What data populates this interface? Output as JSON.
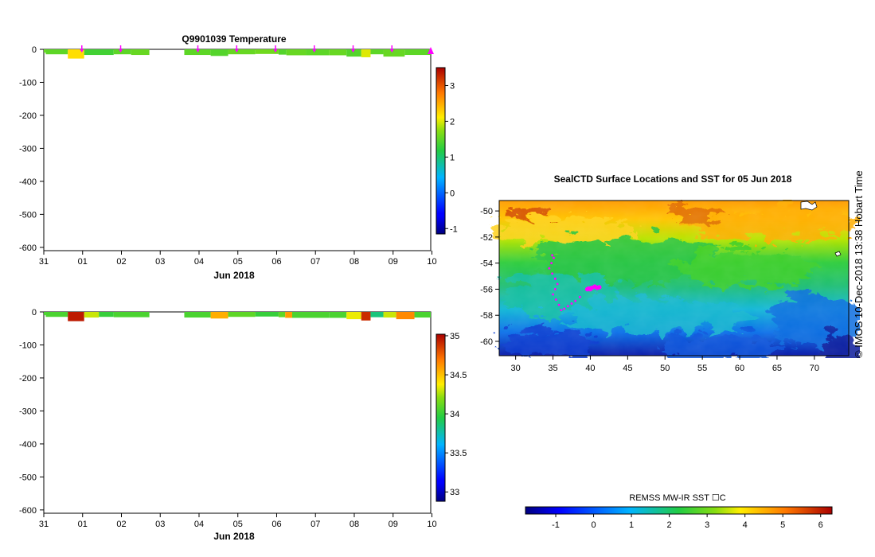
{
  "colors": {
    "marker": "#ff00ff",
    "land_mask": "#ffffff"
  },
  "chart_data": [
    {
      "id": "temperature_section",
      "type": "heatmap",
      "title": "Q9901039  Temperature",
      "xlabel": "Jun 2018",
      "ylabel": "",
      "x_tick_labels": [
        "31",
        "01",
        "02",
        "03",
        "04",
        "05",
        "06",
        "07",
        "08",
        "09",
        "10"
      ],
      "y_ticks": [
        0,
        -100,
        -200,
        -300,
        -400,
        -500,
        -600
      ],
      "xlim": [
        0,
        9.97
      ],
      "ylim": [
        -610,
        0
      ],
      "colorbar": {
        "ticks": [
          -1,
          0,
          1,
          2,
          3
        ],
        "range": [
          -1.15,
          3.5
        ],
        "colormap": "jet"
      },
      "profile_markers_x": [
        0.98,
        1.98,
        3.97,
        4.97,
        5.97,
        6.97,
        7.97,
        8.97,
        9.97
      ],
      "bars": [
        {
          "x0": 0.0,
          "x1": 0.05,
          "depth": -10,
          "value": 1.55
        },
        {
          "x0": 0.05,
          "x1": 0.62,
          "depth": -15,
          "value": 1.5
        },
        {
          "x0": 0.62,
          "x1": 1.04,
          "depth": -28,
          "value": 2.2
        },
        {
          "x0": 1.04,
          "x1": 1.8,
          "depth": -17,
          "value": 1.35
        },
        {
          "x0": 1.8,
          "x1": 2.25,
          "depth": -15,
          "value": 1.5
        },
        {
          "x0": 2.25,
          "x1": 2.72,
          "depth": -17,
          "value": 1.55
        },
        {
          "x0": 3.62,
          "x1": 4.3,
          "depth": -17,
          "value": 1.5
        },
        {
          "x0": 4.3,
          "x1": 4.75,
          "depth": -20,
          "value": 1.45
        },
        {
          "x0": 4.75,
          "x1": 5.45,
          "depth": -15,
          "value": 1.55
        },
        {
          "x0": 5.45,
          "x1": 6.05,
          "depth": -14,
          "value": 1.6
        },
        {
          "x0": 6.05,
          "x1": 6.25,
          "depth": -16,
          "value": 1.45
        },
        {
          "x0": 6.25,
          "x1": 6.75,
          "depth": -18,
          "value": 1.55
        },
        {
          "x0": 6.75,
          "x1": 7.35,
          "depth": -18,
          "value": 1.5
        },
        {
          "x0": 7.35,
          "x1": 7.8,
          "depth": -18,
          "value": 1.55
        },
        {
          "x0": 7.8,
          "x1": 8.18,
          "depth": -22,
          "value": 1.45
        },
        {
          "x0": 8.18,
          "x1": 8.42,
          "depth": -24,
          "value": 2.0
        },
        {
          "x0": 8.42,
          "x1": 8.75,
          "depth": -15,
          "value": 1.5
        },
        {
          "x0": 8.75,
          "x1": 9.3,
          "depth": -22,
          "value": 1.55
        },
        {
          "x0": 9.3,
          "x1": 9.97,
          "depth": -17,
          "value": 1.5
        }
      ]
    },
    {
      "id": "salinity_section",
      "type": "heatmap",
      "title": "",
      "xlabel": "Jun 2018",
      "ylabel": "",
      "x_tick_labels": [
        "31",
        "01",
        "02",
        "03",
        "04",
        "05",
        "06",
        "07",
        "08",
        "09",
        "10"
      ],
      "y_ticks": [
        0,
        -100,
        -200,
        -300,
        -400,
        -500,
        -600
      ],
      "xlim": [
        0,
        9.97
      ],
      "ylim": [
        -610,
        0
      ],
      "colorbar": {
        "ticks": [
          33,
          33.5,
          34,
          34.5,
          35
        ],
        "range": [
          32.88,
          35.02
        ],
        "colormap": "jet"
      },
      "bars": [
        {
          "x0": 0.0,
          "x1": 0.05,
          "depth": -10,
          "value": 34.05
        },
        {
          "x0": 0.05,
          "x1": 0.62,
          "depth": -15,
          "value": 34.05
        },
        {
          "x0": 0.62,
          "x1": 1.04,
          "depth": -28,
          "value": 34.95
        },
        {
          "x0": 1.04,
          "x1": 1.42,
          "depth": -17,
          "value": 34.3
        },
        {
          "x0": 1.42,
          "x1": 1.8,
          "depth": -15,
          "value": 34.0
        },
        {
          "x0": 1.8,
          "x1": 2.72,
          "depth": -16,
          "value": 34.05
        },
        {
          "x0": 3.62,
          "x1": 4.3,
          "depth": -17,
          "value": 34.05
        },
        {
          "x0": 4.3,
          "x1": 4.75,
          "depth": -20,
          "value": 34.55
        },
        {
          "x0": 4.75,
          "x1": 5.45,
          "depth": -15,
          "value": 34.1
        },
        {
          "x0": 5.45,
          "x1": 6.05,
          "depth": -14,
          "value": 34.0
        },
        {
          "x0": 6.05,
          "x1": 6.22,
          "depth": -16,
          "value": 34.1
        },
        {
          "x0": 6.22,
          "x1": 6.4,
          "depth": -18,
          "value": 34.6
        },
        {
          "x0": 6.4,
          "x1": 7.35,
          "depth": -18,
          "value": 34.05
        },
        {
          "x0": 7.35,
          "x1": 7.8,
          "depth": -18,
          "value": 34.05
        },
        {
          "x0": 7.8,
          "x1": 8.18,
          "depth": -22,
          "value": 34.35
        },
        {
          "x0": 8.18,
          "x1": 8.42,
          "depth": -26,
          "value": 34.9
        },
        {
          "x0": 8.42,
          "x1": 8.75,
          "depth": -16,
          "value": 33.85
        },
        {
          "x0": 8.75,
          "x1": 9.08,
          "depth": -17,
          "value": 34.3
        },
        {
          "x0": 9.08,
          "x1": 9.55,
          "depth": -22,
          "value": 34.65
        },
        {
          "x0": 9.55,
          "x1": 9.97,
          "depth": -17,
          "value": 34.05
        }
      ]
    },
    {
      "id": "sst_map",
      "type": "heatmap",
      "title": "SealCTD Surface Locations and SST for 05 Jun 2018",
      "xlabel": "",
      "ylabel": "",
      "x_ticks": [
        30,
        35,
        40,
        45,
        50,
        55,
        60,
        65,
        70
      ],
      "y_ticks": [
        -50,
        -52,
        -54,
        -56,
        -58,
        -60
      ],
      "xlim": [
        27.8,
        74.6
      ],
      "ylim": [
        -61.1,
        -49.2
      ],
      "colorbar": {
        "label": "REMSS MW-IR SST ☐C",
        "ticks": [
          -1,
          0,
          1,
          2,
          3,
          4,
          5,
          6
        ],
        "range": [
          -1.8,
          6.3
        ],
        "colormap": "jet"
      },
      "sst_field_description_values": {
        "north_edge_c": 4.2,
        "south_edge_c": -0.9
      },
      "seal_track": [
        [
          40.2,
          -55.9
        ],
        [
          40.6,
          -55.8
        ],
        [
          40.9,
          -55.9
        ],
        [
          41.2,
          -55.85
        ],
        [
          39.6,
          -56.0
        ],
        [
          39.8,
          -55.95
        ],
        [
          40.0,
          -56.0
        ],
        [
          38.6,
          -56.6
        ],
        [
          38.0,
          -56.9
        ],
        [
          37.5,
          -57.1
        ],
        [
          37.0,
          -57.3
        ],
        [
          36.5,
          -57.5
        ],
        [
          36.1,
          -57.6
        ],
        [
          35.8,
          -57.2
        ],
        [
          35.4,
          -56.8
        ],
        [
          35.0,
          -56.4
        ],
        [
          35.3,
          -56.0
        ],
        [
          35.6,
          -55.6
        ],
        [
          35.3,
          -55.2
        ],
        [
          34.9,
          -54.8
        ],
        [
          34.5,
          -54.4
        ],
        [
          34.8,
          -54.0
        ],
        [
          35.1,
          -53.6
        ],
        [
          34.9,
          -53.4
        ]
      ]
    }
  ],
  "footer": {
    "credit": "©  IMOS 10-Dec-2018 13:38 Hobart Time"
  }
}
